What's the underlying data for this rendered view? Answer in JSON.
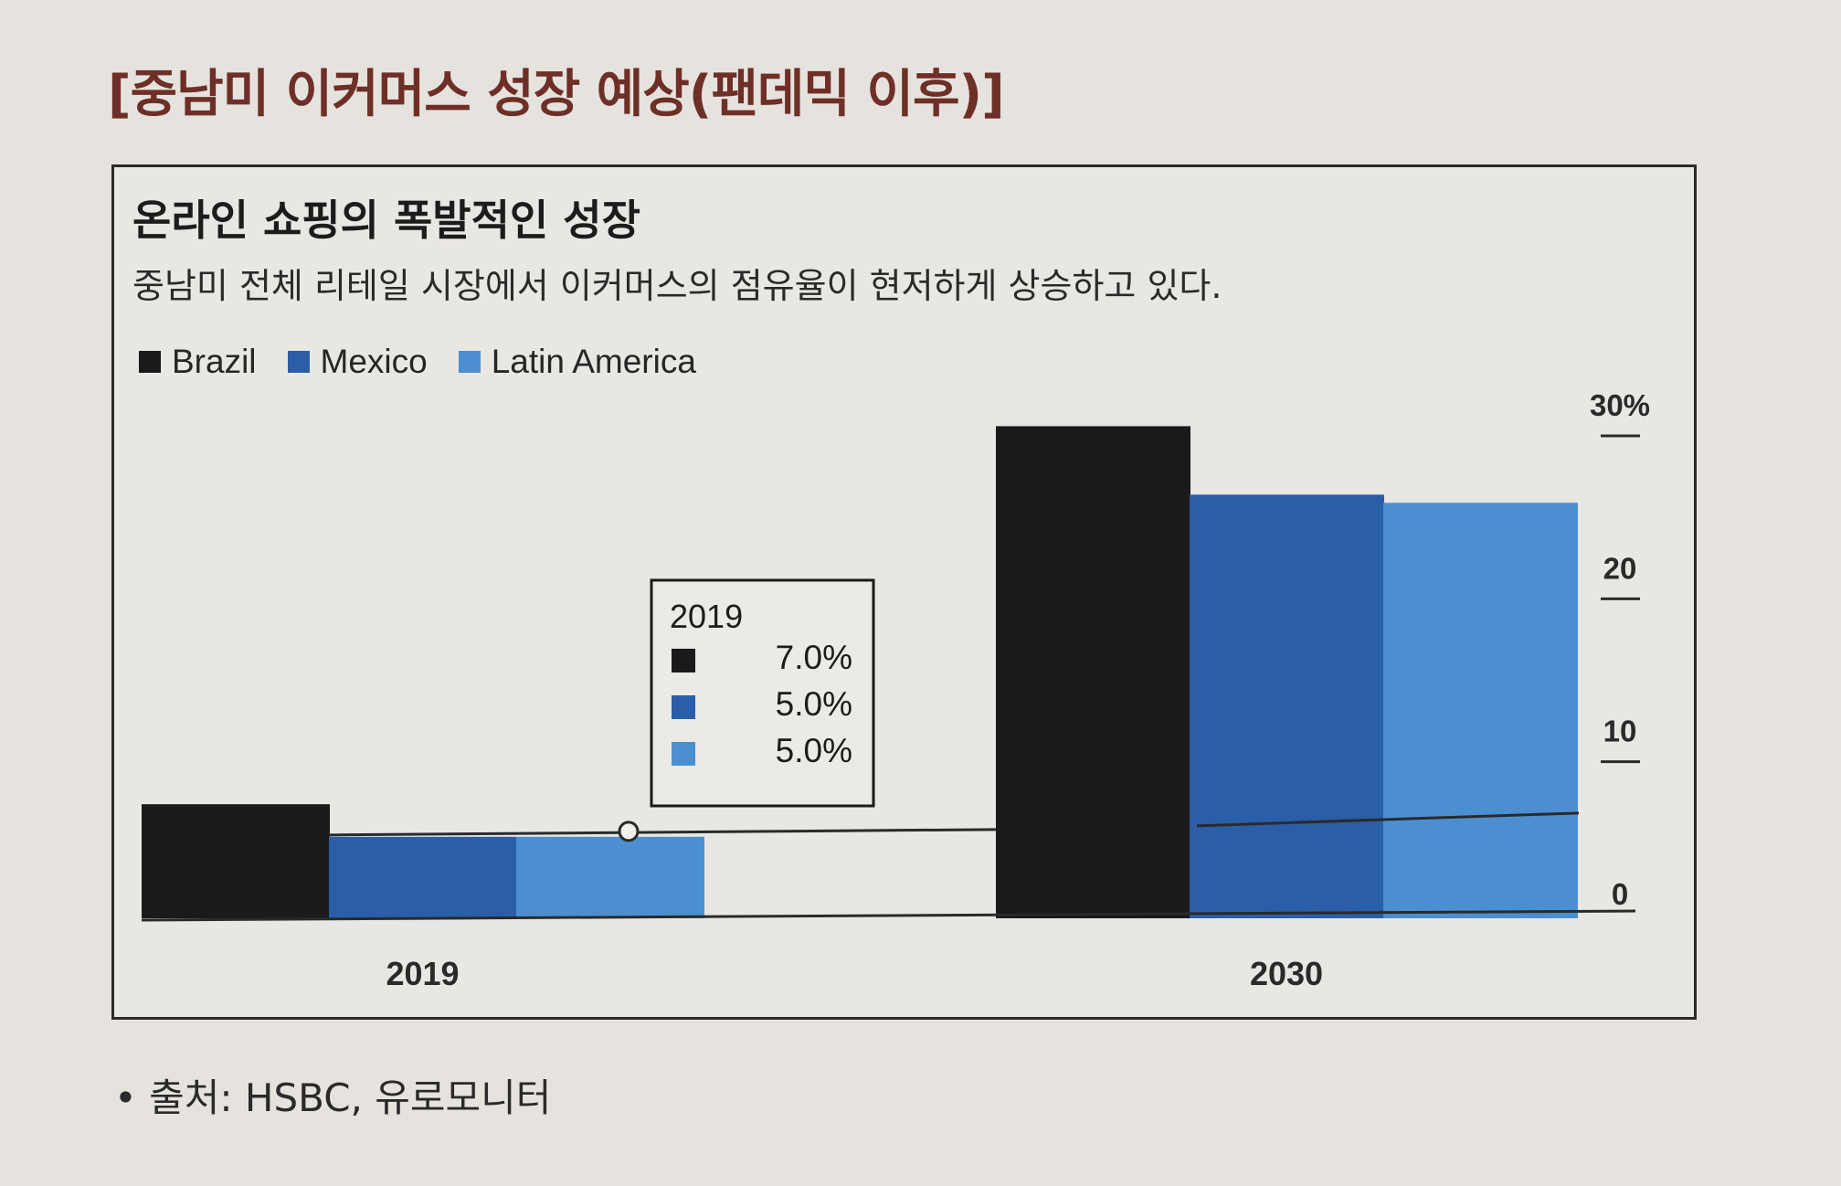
{
  "page": {
    "heading": "[중남미 이커머스 성장 예상(팬데믹 이후)]",
    "source": "• 출처: HSBC, 유로모니터"
  },
  "colors": {
    "heading": "#6e2f27",
    "brazil": "#1a1a1a",
    "mexico": "#2a5ea8",
    "latin_america": "#4c8fd0",
    "axis": "#2a2a2a"
  },
  "chart_data": {
    "type": "bar",
    "title": "온라인 쇼핑의 폭발적인 성장",
    "subtitle": "중남미 전체 리테일 시장에서 이커머스의 점유율이 현저하게 상승하고 있다.",
    "categories": [
      "2019",
      "2030"
    ],
    "series": [
      {
        "name": "Brazil",
        "values": [
          7.0,
          30.2
        ]
      },
      {
        "name": "Mexico",
        "values": [
          5.0,
          26.0
        ]
      },
      {
        "name": "Latin America",
        "values": [
          5.0,
          25.5
        ]
      }
    ],
    "ylim": [
      0,
      30
    ],
    "yticks": [
      0,
      10,
      20,
      30
    ],
    "ytick_labels": [
      "0",
      "10",
      "20",
      "30%"
    ],
    "legend_placement": "top-left",
    "callout": {
      "title": "2019",
      "rows": [
        {
          "series": "Brazil",
          "value": "7.0%"
        },
        {
          "series": "Mexico",
          "value": "5.0%"
        },
        {
          "series": "Latin America",
          "value": "5.0%"
        }
      ]
    }
  }
}
